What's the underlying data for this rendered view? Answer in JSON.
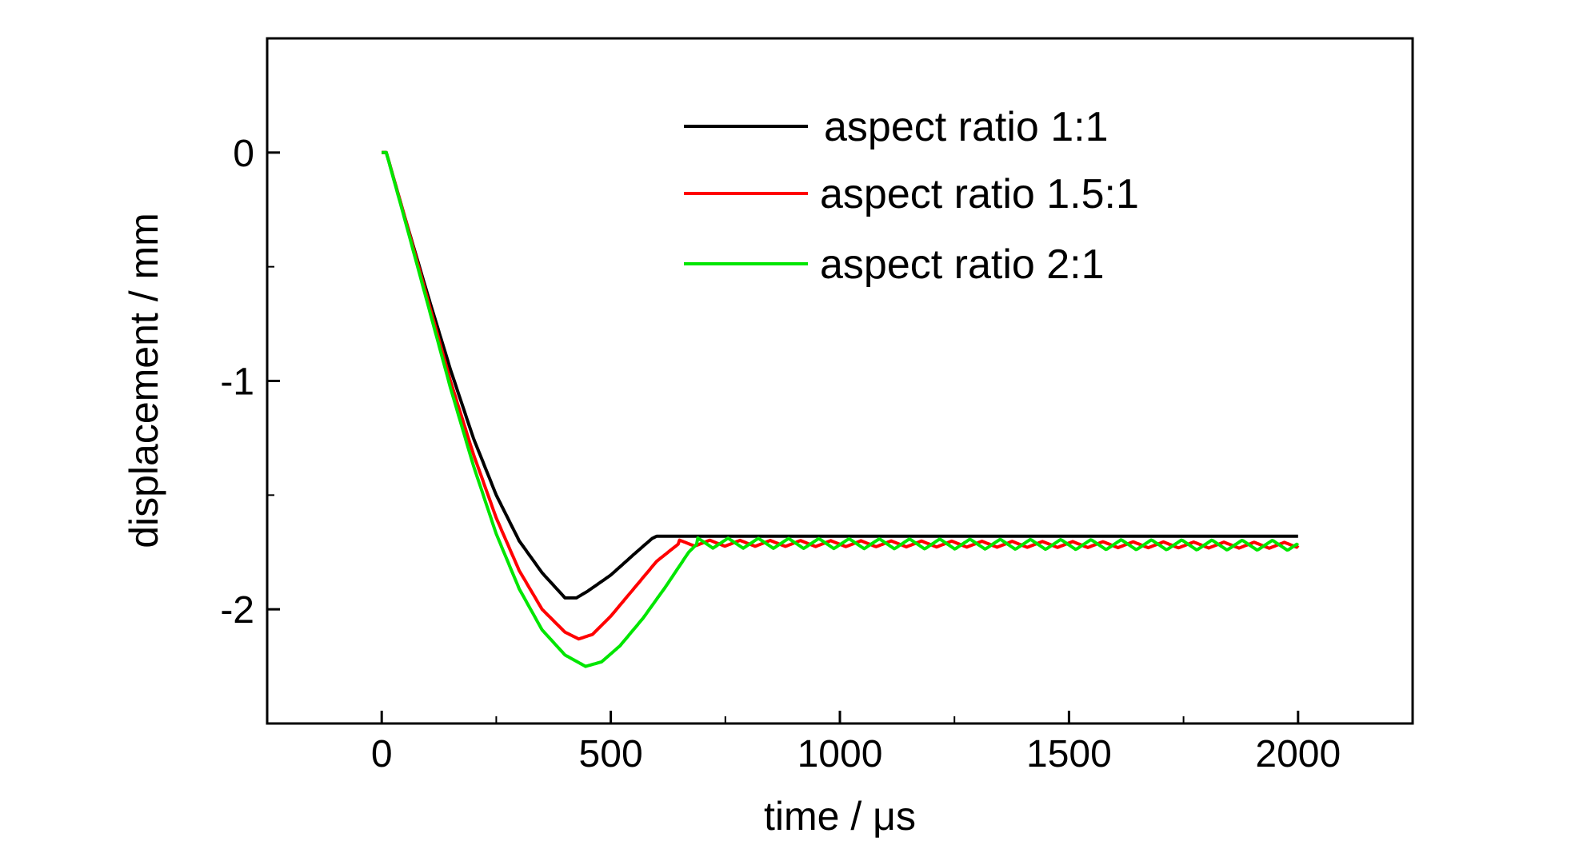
{
  "chart_data": {
    "type": "line",
    "xlabel": "time / μs",
    "ylabel": "displacement / mm",
    "xlim": [
      -250,
      2250
    ],
    "ylim": [
      -2.5,
      0.5
    ],
    "xticks": [
      0,
      500,
      1000,
      1500,
      2000
    ],
    "xtick_labels": [
      "0",
      "500",
      "1000",
      "1500",
      "2000"
    ],
    "xminor": [
      250,
      750,
      1250,
      1750
    ],
    "yticks": [
      0,
      -1,
      -2
    ],
    "ytick_labels": [
      "0",
      "-1",
      "-2"
    ],
    "yminor": [
      -0.5,
      -1.5
    ],
    "grid": false,
    "legend_position": "top-center",
    "series": [
      {
        "name": "aspect ratio 1:1",
        "color": "#000000",
        "points": [
          [
            0,
            0
          ],
          [
            10,
            0
          ],
          [
            50,
            -0.28
          ],
          [
            100,
            -0.62
          ],
          [
            150,
            -0.95
          ],
          [
            200,
            -1.25
          ],
          [
            250,
            -1.5
          ],
          [
            300,
            -1.7
          ],
          [
            350,
            -1.84
          ],
          [
            400,
            -1.95
          ],
          [
            425,
            -1.95
          ],
          [
            450,
            -1.92
          ],
          [
            500,
            -1.85
          ],
          [
            550,
            -1.76
          ],
          [
            590,
            -1.69
          ],
          [
            600,
            -1.68
          ],
          [
            2000,
            -1.68
          ]
        ],
        "oscillation": {
          "start": 600,
          "end": 2000,
          "amplitude": 0.0,
          "period": 66
        }
      },
      {
        "name": "aspect ratio 1.5:1",
        "color": "#ff0000",
        "points": [
          [
            0,
            0
          ],
          [
            10,
            0
          ],
          [
            50,
            -0.28
          ],
          [
            100,
            -0.64
          ],
          [
            150,
            -1.0
          ],
          [
            200,
            -1.32
          ],
          [
            250,
            -1.6
          ],
          [
            300,
            -1.83
          ],
          [
            350,
            -2.0
          ],
          [
            400,
            -2.1
          ],
          [
            430,
            -2.13
          ],
          [
            460,
            -2.11
          ],
          [
            500,
            -2.03
          ],
          [
            550,
            -1.91
          ],
          [
            600,
            -1.79
          ],
          [
            650,
            -1.71
          ],
          [
            2000,
            -1.72
          ]
        ],
        "oscillation": {
          "start": 650,
          "end": 2000,
          "amplitude": 0.013,
          "period": 66
        }
      },
      {
        "name": "aspect ratio 2:1",
        "color": "#00e600",
        "points": [
          [
            0,
            0
          ],
          [
            10,
            0
          ],
          [
            50,
            -0.29
          ],
          [
            100,
            -0.66
          ],
          [
            150,
            -1.03
          ],
          [
            200,
            -1.37
          ],
          [
            250,
            -1.67
          ],
          [
            300,
            -1.91
          ],
          [
            350,
            -2.09
          ],
          [
            400,
            -2.2
          ],
          [
            445,
            -2.25
          ],
          [
            480,
            -2.23
          ],
          [
            520,
            -2.16
          ],
          [
            570,
            -2.04
          ],
          [
            620,
            -1.9
          ],
          [
            670,
            -1.75
          ],
          [
            690,
            -1.71
          ],
          [
            2000,
            -1.72
          ]
        ],
        "oscillation": {
          "start": 690,
          "end": 2000,
          "amplitude": 0.022,
          "period": 66
        }
      }
    ]
  }
}
